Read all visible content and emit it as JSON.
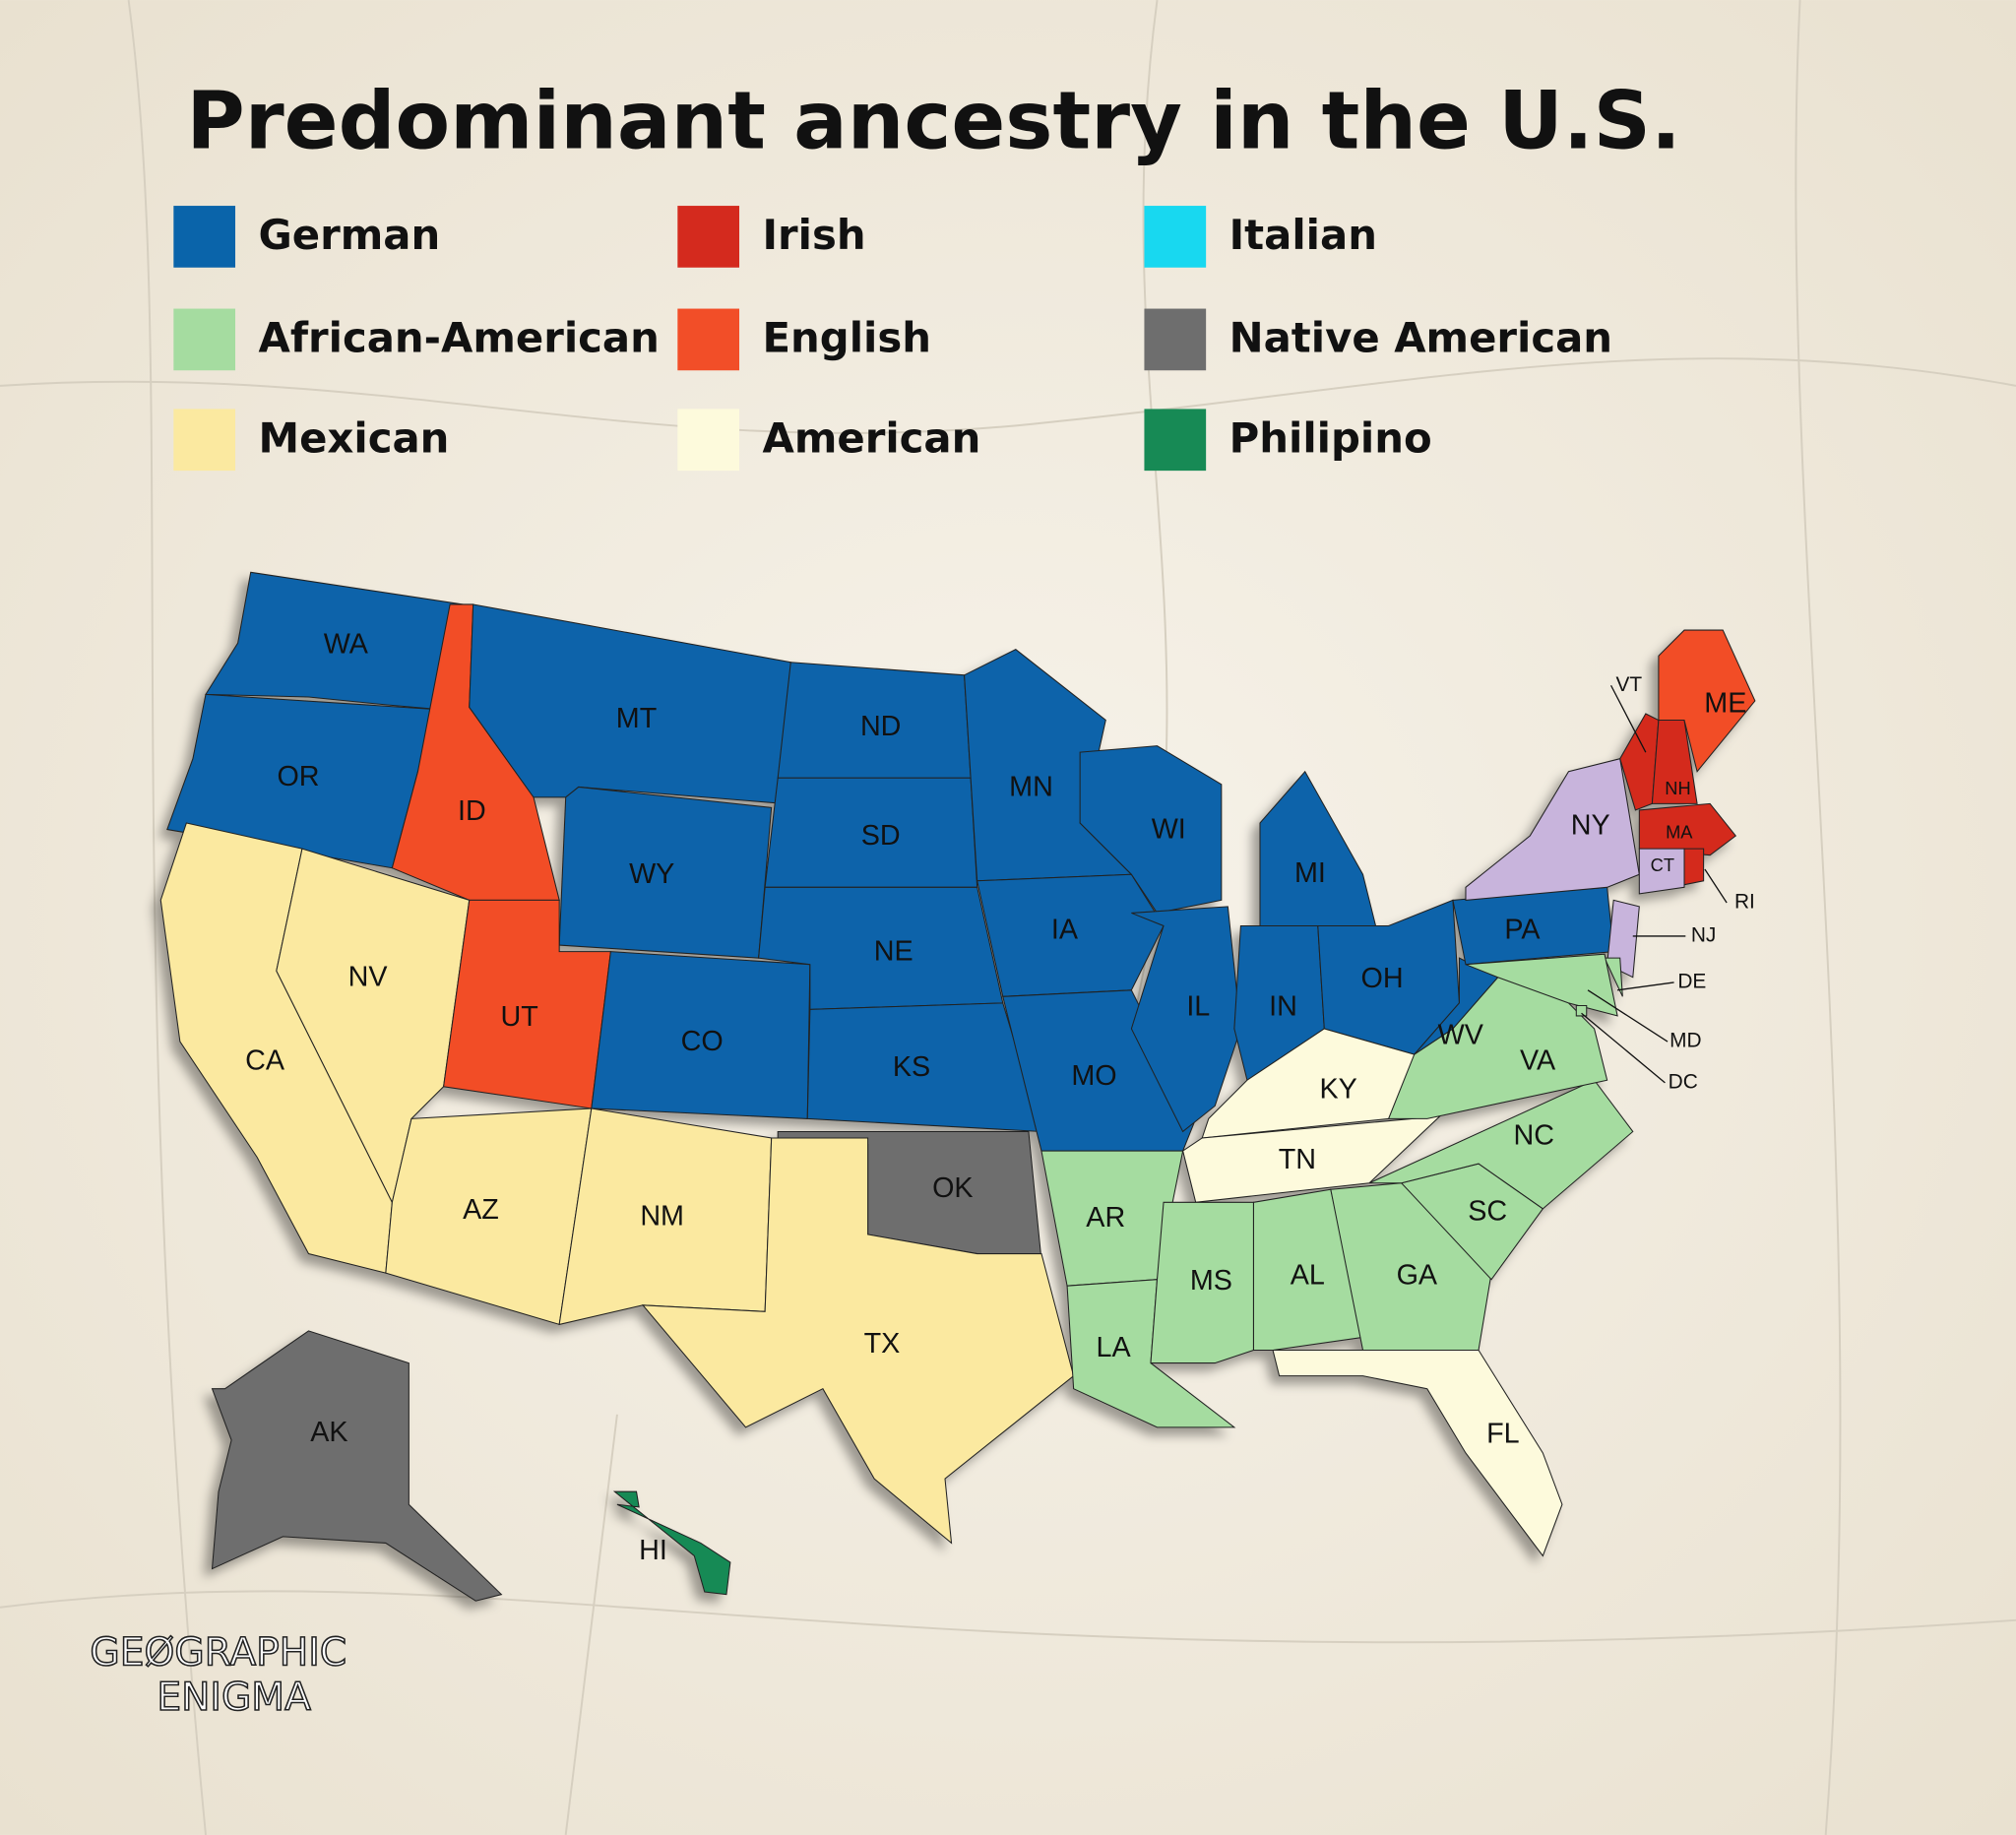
{
  "title": "Predominant ancestry in the U.S.",
  "legend": [
    {
      "name": "German",
      "color": "#0a64aa"
    },
    {
      "name": "African-American",
      "color": "#a5dca0"
    },
    {
      "name": "Mexican",
      "color": "#fbe9a0"
    },
    {
      "name": "Irish",
      "color": "#d42a1e"
    },
    {
      "name": "English",
      "color": "#f24e28"
    },
    {
      "name": "American",
      "color": "#fdfadc"
    },
    {
      "name": "Italian",
      "color": "#18d8f0"
    },
    {
      "name": "Native American",
      "color": "#6e6e6e"
    },
    {
      "name": "Philipino",
      "color": "#178a55"
    }
  ],
  "states": [
    {
      "label": "WA",
      "color": "#0a64aa"
    },
    {
      "label": "OR",
      "color": "#0a64aa"
    },
    {
      "label": "CA",
      "color": "#fbe9a0"
    },
    {
      "label": "ID",
      "color": "#f24e28"
    },
    {
      "label": "NV",
      "color": "#fbe9a0"
    },
    {
      "label": "MT",
      "color": "#0a64aa"
    },
    {
      "label": "WY",
      "color": "#0a64aa"
    },
    {
      "label": "UT",
      "color": "#f24e28"
    },
    {
      "label": "AZ",
      "color": "#fbe9a0"
    },
    {
      "label": "CO",
      "color": "#0a64aa"
    },
    {
      "label": "NM",
      "color": "#fbe9a0"
    },
    {
      "label": "ND",
      "color": "#0a64aa"
    },
    {
      "label": "SD",
      "color": "#0a64aa"
    },
    {
      "label": "NE",
      "color": "#0a64aa"
    },
    {
      "label": "KS",
      "color": "#0a64aa"
    },
    {
      "label": "OK",
      "color": "#6e6e6e"
    },
    {
      "label": "TX",
      "color": "#fbe9a0"
    },
    {
      "label": "MN",
      "color": "#0a64aa"
    },
    {
      "label": "IA",
      "color": "#0a64aa"
    },
    {
      "label": "MO",
      "color": "#0a64aa"
    },
    {
      "label": "AR",
      "color": "#a5dca0"
    },
    {
      "label": "LA",
      "color": "#a5dca0"
    },
    {
      "label": "WI",
      "color": "#0a64aa"
    },
    {
      "label": "IL",
      "color": "#0a64aa"
    },
    {
      "label": "MI",
      "color": "#0a64aa"
    },
    {
      "label": "IN",
      "color": "#0a64aa"
    },
    {
      "label": "OH",
      "color": "#0a64aa"
    },
    {
      "label": "KY",
      "color": "#fdfadc"
    },
    {
      "label": "TN",
      "color": "#fdfadc"
    },
    {
      "label": "MS",
      "color": "#a5dca0"
    },
    {
      "label": "AL",
      "color": "#a5dca0"
    },
    {
      "label": "GA",
      "color": "#a5dca0"
    },
    {
      "label": "FL",
      "color": "#fdfadc"
    },
    {
      "label": "SC",
      "color": "#a5dca0"
    },
    {
      "label": "NC",
      "color": "#a5dca0"
    },
    {
      "label": "VA",
      "color": "#a5dca0"
    },
    {
      "label": "WV",
      "color": "#0a64aa"
    },
    {
      "label": "PA",
      "color": "#0a64aa"
    },
    {
      "label": "NY",
      "color": "#c8b4dc"
    },
    {
      "label": "NJ",
      "color": "#c8b4dc"
    },
    {
      "label": "DE",
      "color": "#a5dca0"
    },
    {
      "label": "MD",
      "color": "#a5dca0"
    },
    {
      "label": "DC",
      "color": "#a5dca0"
    },
    {
      "label": "VT",
      "color": "#d42a1e"
    },
    {
      "label": "NH",
      "color": "#d42a1e"
    },
    {
      "label": "ME",
      "color": "#f24e28"
    },
    {
      "label": "MA",
      "color": "#d42a1e"
    },
    {
      "label": "CT",
      "color": "#c8b4dc"
    },
    {
      "label": "RI",
      "color": "#d42a1e"
    },
    {
      "label": "AK",
      "color": "#6e6e6e"
    },
    {
      "label": "HI",
      "color": "#178a55"
    }
  ],
  "brand": {
    "line1": "GEØGRAPHIC",
    "line2": "ENIGMA"
  }
}
